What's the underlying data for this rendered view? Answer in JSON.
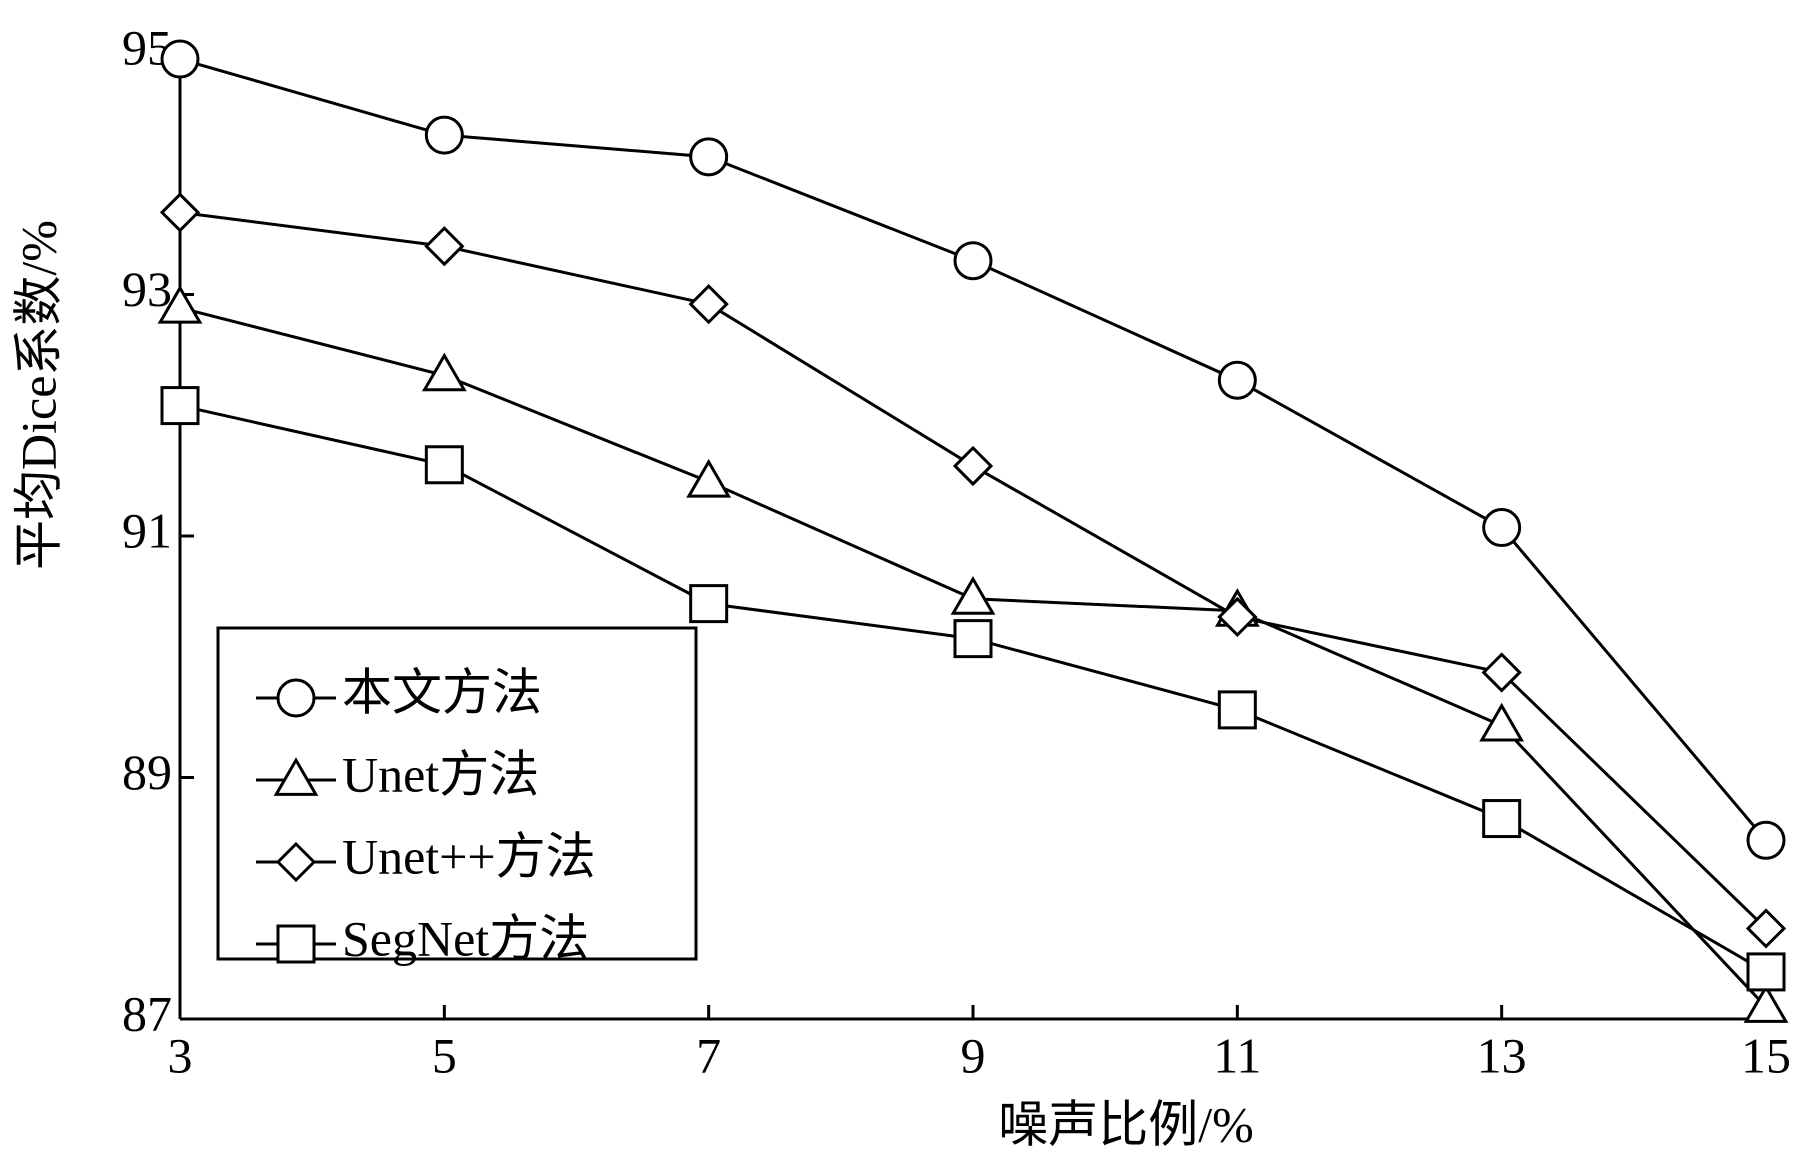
{
  "chart_data": {
    "type": "line",
    "x_label": "噪声比例/%",
    "y_label": "平均Dice系数/%",
    "x": [
      3,
      5,
      7,
      9,
      11,
      13,
      15
    ],
    "series": [
      {
        "name": "本文方法",
        "color": "#000000",
        "marker": "circle",
        "values": [
          94.95,
          94.32,
          94.14,
          93.28,
          92.29,
          91.07,
          88.48
        ]
      },
      {
        "name": "Unet方法",
        "color": "#000000",
        "marker": "triangle",
        "values": [
          92.89,
          92.33,
          91.45,
          90.48,
          90.38,
          89.43,
          87.1
        ]
      },
      {
        "name": "Unet++方法",
        "color": "#000000",
        "marker": "diamond",
        "values": [
          93.68,
          93.4,
          92.92,
          91.58,
          90.33,
          89.87,
          87.75
        ]
      },
      {
        "name": "SegNet方法",
        "color": "#000000",
        "marker": "square",
        "values": [
          92.08,
          91.59,
          90.44,
          90.15,
          89.56,
          88.66,
          87.39
        ]
      }
    ],
    "xlim": [
      3,
      15
    ],
    "xticks": [
      3,
      5,
      7,
      9,
      11,
      13,
      15
    ],
    "ylim": [
      87,
      95
    ],
    "yticks": [
      87,
      89,
      91,
      93,
      95
    ],
    "legend": "lower left",
    "grid": false
  }
}
